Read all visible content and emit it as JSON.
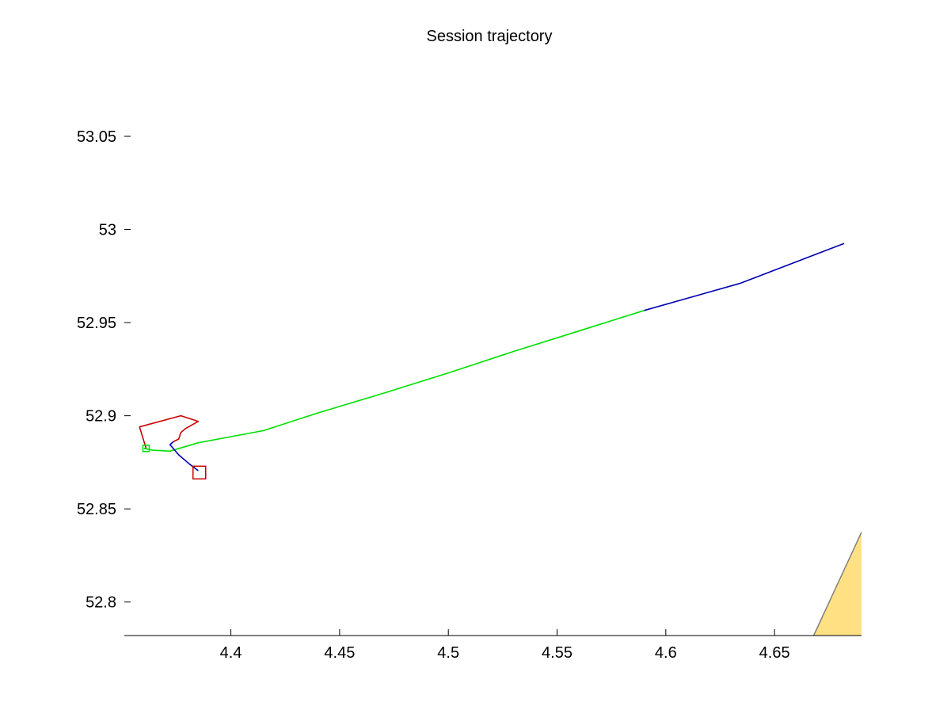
{
  "chart_data": {
    "type": "line",
    "title": "Session trajectory",
    "xlabel": "",
    "ylabel": "",
    "xlim": [
      4.351,
      4.69
    ],
    "ylim": [
      52.782,
      53.09
    ],
    "x_ticks": [
      4.4,
      4.45,
      4.5,
      4.55,
      4.6,
      4.65
    ],
    "x_tick_labels": [
      "4.4",
      "4.45",
      "4.5",
      "4.55",
      "4.6",
      "4.65"
    ],
    "y_ticks": [
      52.8,
      52.85,
      52.9,
      52.95,
      53.0,
      53.05
    ],
    "y_tick_labels": [
      "52.8",
      "52.85",
      "52.9",
      "52.95",
      "53",
      "53.05"
    ],
    "grid": false,
    "series": [
      {
        "color": "#00e000",
        "x": [
          4.36,
          4.364,
          4.372,
          4.385,
          4.415,
          4.44,
          4.47,
          4.5,
          4.53,
          4.56,
          4.59
        ],
        "y": [
          52.8825,
          52.8815,
          52.881,
          52.8855,
          52.892,
          52.9015,
          52.912,
          52.923,
          52.9345,
          52.9455,
          52.9565
        ]
      },
      {
        "color": "#0000b0",
        "x": [
          4.59,
          4.634,
          4.682
        ],
        "y": [
          52.9565,
          52.971,
          52.9925
        ]
      },
      {
        "color": "#cc0000",
        "x": [
          4.361,
          4.358,
          4.377,
          4.385,
          4.379,
          4.377,
          4.376,
          4.3735
        ],
        "y": [
          52.8825,
          52.894,
          52.9,
          52.897,
          52.893,
          52.891,
          52.8875,
          52.886
        ]
      },
      {
        "color": "#0000b0",
        "x": [
          4.3735,
          4.372,
          4.376,
          4.381,
          4.385
        ],
        "y": [
          52.886,
          52.8845,
          52.879,
          52.874,
          52.8705
        ]
      }
    ],
    "markers": [
      {
        "shape": "square",
        "color": "#00e000",
        "x": 4.361,
        "y": 52.8825,
        "size": "small"
      },
      {
        "shape": "square",
        "color": "#cc0000",
        "x": 4.3855,
        "y": 52.8695,
        "size": "large"
      }
    ],
    "land_patch": {
      "fill": "#ffe184",
      "stroke": "#808080",
      "x": [
        4.668,
        4.69,
        4.69
      ],
      "y": [
        52.782,
        52.8375,
        52.782
      ]
    }
  }
}
